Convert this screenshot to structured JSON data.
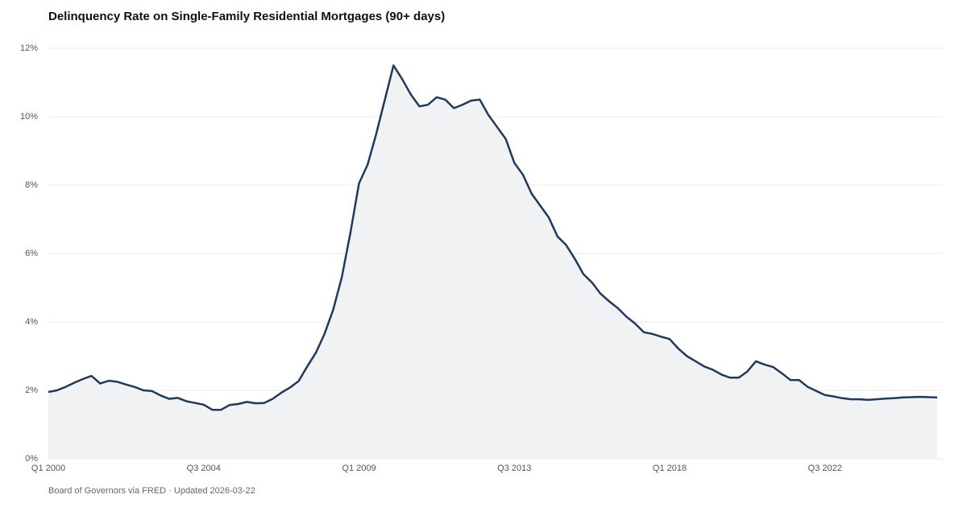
{
  "chart_data": {
    "type": "area",
    "title": "Delinquency Rate on Single-Family Residential Mortgages (90+ days)",
    "source": "Board of Governors via FRED · Updated 2026-03-22",
    "categories": [
      "Q1 2000",
      null,
      null,
      null,
      null,
      null,
      null,
      null,
      null,
      null,
      null,
      null,
      null,
      null,
      null,
      null,
      null,
      null,
      "Q3 2004",
      null,
      null,
      null,
      null,
      null,
      null,
      null,
      null,
      null,
      null,
      null,
      null,
      null,
      null,
      null,
      null,
      null,
      "Q1 2009",
      null,
      null,
      null,
      null,
      null,
      null,
      null,
      null,
      null,
      null,
      null,
      null,
      null,
      null,
      null,
      null,
      null,
      "Q3 2013",
      null,
      null,
      null,
      null,
      null,
      null,
      null,
      null,
      null,
      null,
      null,
      null,
      null,
      null,
      null,
      null,
      null,
      "Q1 2018",
      null,
      null,
      null,
      null,
      null,
      null,
      null,
      null,
      null,
      null,
      null,
      null,
      null,
      null,
      null,
      null,
      null,
      "Q3 2022",
      null,
      null,
      null,
      null,
      null,
      null,
      null,
      null,
      null,
      null,
      null,
      null,
      null
    ],
    "series": [
      {
        "name": "Delinquency rate",
        "color": "#1f3a5f",
        "fill": "#f1f2f4",
        "values": [
          1.95,
          2.0,
          2.1,
          2.22,
          2.33,
          2.42,
          2.2,
          2.28,
          2.25,
          2.17,
          2.1,
          2.0,
          1.98,
          1.85,
          1.75,
          1.78,
          1.68,
          1.63,
          1.58,
          1.43,
          1.43,
          1.57,
          1.6,
          1.66,
          1.62,
          1.63,
          1.75,
          1.93,
          2.08,
          2.27,
          2.7,
          3.1,
          3.65,
          4.35,
          5.3,
          6.6,
          8.05,
          8.6,
          9.5,
          10.5,
          11.5,
          11.1,
          10.65,
          10.3,
          10.35,
          10.57,
          10.5,
          10.25,
          10.35,
          10.47,
          10.5,
          10.05,
          9.7,
          9.35,
          8.65,
          8.3,
          7.75,
          7.4,
          7.05,
          6.5,
          6.25,
          5.85,
          5.4,
          5.15,
          4.82,
          4.6,
          4.4,
          4.15,
          3.95,
          3.7,
          3.65,
          3.57,
          3.5,
          3.22,
          3.0,
          2.85,
          2.7,
          2.6,
          2.46,
          2.37,
          2.37,
          2.55,
          2.85,
          2.75,
          2.68,
          2.5,
          2.3,
          2.3,
          2.1,
          1.98,
          1.86,
          1.82,
          1.77,
          1.74,
          1.74,
          1.72,
          1.74,
          1.76,
          1.77,
          1.79,
          1.8,
          1.81,
          1.8,
          1.79
        ]
      }
    ],
    "ylim": [
      0,
      12
    ],
    "yticks": [
      {
        "value": 0,
        "label": "0%"
      },
      {
        "value": 2,
        "label": "2%"
      },
      {
        "value": 4,
        "label": "4%"
      },
      {
        "value": 6,
        "label": "6%"
      },
      {
        "value": 8,
        "label": "8%"
      },
      {
        "value": 10,
        "label": "10%"
      },
      {
        "value": 12,
        "label": "12%"
      }
    ],
    "grid": true
  }
}
